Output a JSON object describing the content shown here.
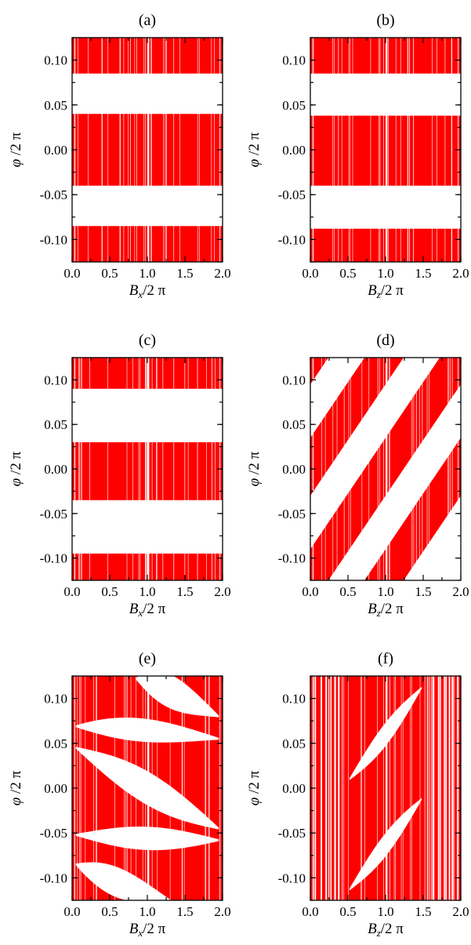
{
  "chart_data": [
    {
      "type": "scatter",
      "panel_label": "(a)",
      "xlabel": {
        "var": "B",
        "sub": "x",
        "rest": "/2 π"
      },
      "ylabel": {
        "var": "φ",
        "rest": " /2 π"
      },
      "xlim": [
        0.0,
        2.0
      ],
      "ylim": [
        -0.125,
        0.125
      ],
      "xticks": [
        "0.0",
        "0.5",
        "1.0",
        "1.5",
        "2.0"
      ],
      "yticks": [
        "0.10",
        "0.05",
        "0.00",
        "-0.05",
        "-0.10"
      ],
      "color": "#ff0000",
      "bands": [
        {
          "kind": "flat",
          "y_top": 0.125,
          "y_bot": 0.085
        },
        {
          "kind": "flat",
          "y_top": 0.04,
          "y_bot": -0.04
        },
        {
          "kind": "flat",
          "y_top": -0.085,
          "y_bot": -0.125
        }
      ]
    },
    {
      "type": "scatter",
      "panel_label": "(b)",
      "xlabel": {
        "var": "B",
        "sub": "z",
        "rest": "/2 π"
      },
      "ylabel": {
        "var": "φ",
        "rest": " /2 π"
      },
      "xlim": [
        0.0,
        2.0
      ],
      "ylim": [
        -0.125,
        0.125
      ],
      "xticks": [
        "0.0",
        "0.5",
        "1.0",
        "1.5",
        "2.0"
      ],
      "yticks": [
        "0.10",
        "0.05",
        "0.00",
        "-0.05",
        "-0.10"
      ],
      "color": "#ff0000",
      "bands": [
        {
          "kind": "flat",
          "y_top": 0.125,
          "y_bot": 0.085
        },
        {
          "kind": "flat",
          "y_top": 0.038,
          "y_bot": -0.04
        },
        {
          "kind": "flat",
          "y_top": -0.088,
          "y_bot": -0.125
        }
      ]
    },
    {
      "type": "scatter",
      "panel_label": "(c)",
      "xlabel": {
        "var": "B",
        "sub": "x",
        "rest": "/2 π"
      },
      "ylabel": {
        "var": "φ",
        "rest": " /2 π"
      },
      "xlim": [
        0.0,
        2.0
      ],
      "ylim": [
        -0.125,
        0.125
      ],
      "xticks": [
        "0.0",
        "0.5",
        "1.0",
        "1.5",
        "2.0"
      ],
      "yticks": [
        "0.10",
        "0.05",
        "0.00",
        "-0.05",
        "-0.10"
      ],
      "color": "#ff0000",
      "bands": [
        {
          "kind": "flat",
          "y_top": 0.125,
          "y_bot": 0.09
        },
        {
          "kind": "flat",
          "y_top": 0.03,
          "y_bot": -0.035
        },
        {
          "kind": "flat",
          "y_top": -0.095,
          "y_bot": -0.125
        }
      ]
    },
    {
      "type": "scatter",
      "panel_label": "(d)",
      "xlabel": {
        "var": "B",
        "sub": "z",
        "rest": "/2 π"
      },
      "ylabel": {
        "var": "φ",
        "rest": " /2 π"
      },
      "xlim": [
        0.0,
        2.0
      ],
      "ylim": [
        -0.125,
        0.125
      ],
      "xticks": [
        "0.0",
        "0.5",
        "1.0",
        "1.5",
        "2.0"
      ],
      "yticks": [
        "0.10",
        "0.05",
        "0.00",
        "-0.05",
        "-0.10"
      ],
      "color": "#ff0000",
      "bands": [
        {
          "kind": "slope",
          "slope": 0.125,
          "y0_top": 0.16,
          "y0_bot": 0.095
        },
        {
          "kind": "slope",
          "slope": 0.125,
          "y0_top": 0.035,
          "y0_bot": -0.03
        },
        {
          "kind": "slope",
          "slope": 0.125,
          "y0_top": -0.09,
          "y0_bot": -0.155
        },
        {
          "kind": "slope",
          "slope": 0.125,
          "y0_top": -0.215,
          "y0_bot": -0.28
        }
      ]
    },
    {
      "type": "scatter",
      "panel_label": "(e)",
      "xlabel": {
        "var": "B",
        "sub": "x",
        "rest": "/2 π"
      },
      "ylabel": {
        "var": "φ",
        "rest": " /2 π"
      },
      "xlim": [
        0.0,
        2.0
      ],
      "ylim": [
        -0.125,
        0.125
      ],
      "xticks": [
        "0.0",
        "0.5",
        "1.0",
        "1.5",
        "2.0"
      ],
      "yticks": [
        "0.10",
        "0.05",
        "0.00",
        "-0.05",
        "-0.10"
      ],
      "color": "#ff0000",
      "bands": [
        {
          "kind": "full",
          "y_top": 0.125,
          "y_bot": -0.125
        }
      ],
      "gaps": [
        {
          "x": [
            0.85,
            1.3,
            1.95
          ],
          "y": [
            0.122,
            0.108,
            0.08
          ],
          "w": 0.018
        },
        {
          "x": [
            0.05,
            0.9,
            1.95
          ],
          "y": [
            0.069,
            0.065,
            0.055
          ],
          "w": 0.012
        },
        {
          "x": [
            0.05,
            1.0,
            1.95
          ],
          "y": [
            0.045,
            0.0,
            -0.045
          ],
          "w": 0.018
        },
        {
          "x": [
            0.05,
            1.0,
            1.95
          ],
          "y": [
            -0.052,
            -0.056,
            -0.058
          ],
          "w": 0.012
        },
        {
          "x": [
            0.05,
            0.6,
            1.3
          ],
          "y": [
            -0.085,
            -0.105,
            -0.125
          ],
          "w": 0.016
        }
      ]
    },
    {
      "type": "scatter",
      "panel_label": "(f)",
      "xlabel": {
        "var": "B",
        "sub": "z",
        "rest": "/2 π"
      },
      "ylabel": {
        "var": "φ",
        "rest": " /2 π"
      },
      "xlim": [
        0.0,
        2.0
      ],
      "ylim": [
        -0.125,
        0.125
      ],
      "xticks": [
        "0.0",
        "0.5",
        "1.0",
        "1.5",
        "2.0"
      ],
      "yticks": [
        "0.10",
        "0.05",
        "0.00",
        "-0.05",
        "-0.10"
      ],
      "color": "#ff0000",
      "bands": [
        {
          "kind": "full",
          "y_top": 0.125,
          "y_bot": -0.125
        }
      ],
      "gaps": [
        {
          "x": [
            0.52,
            1.0,
            1.48
          ],
          "y": [
            0.01,
            0.06,
            0.112
          ],
          "w": 0.012
        },
        {
          "x": [
            0.52,
            1.0,
            1.48
          ],
          "y": [
            -0.113,
            -0.063,
            -0.012
          ],
          "w": 0.012
        }
      ]
    }
  ]
}
